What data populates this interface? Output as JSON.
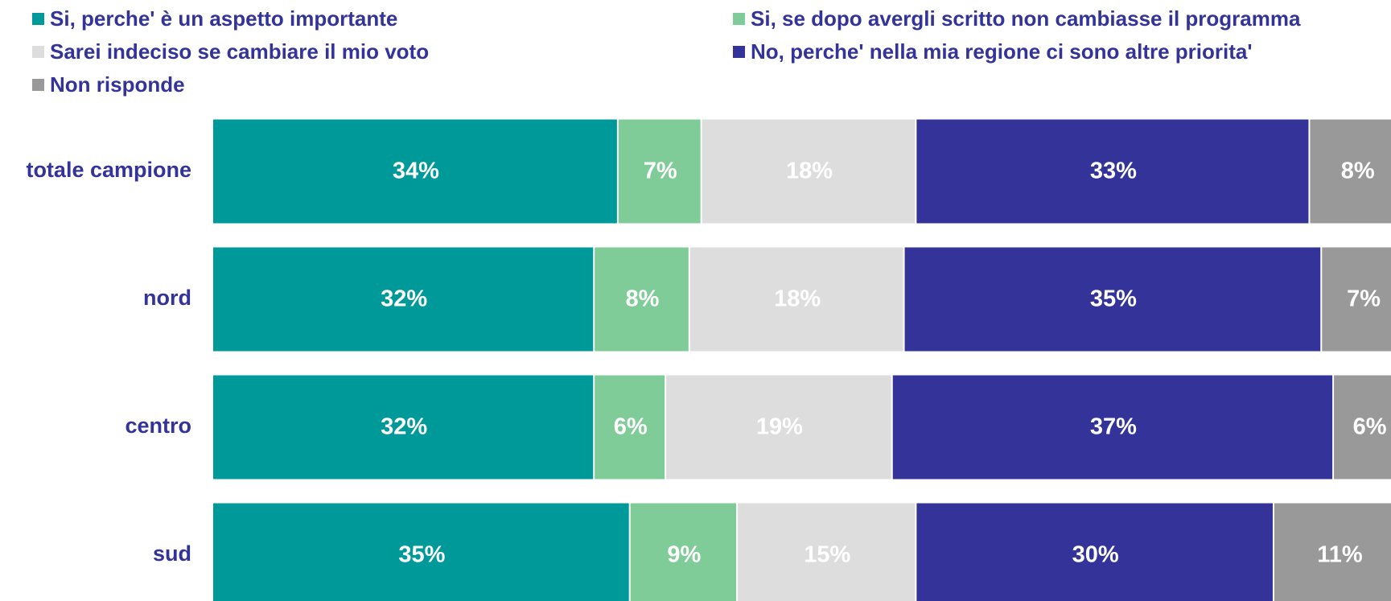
{
  "chart_data": {
    "type": "bar",
    "orientation": "horizontal",
    "stacked": true,
    "categories": [
      "totale campione",
      "nord",
      "centro",
      "sud"
    ],
    "xlim": [
      0,
      100
    ],
    "series": [
      {
        "name": "Si, perche' è un aspetto importante",
        "color": "#009999",
        "values": [
          34,
          32,
          32,
          35
        ],
        "value_labels": [
          "34%",
          "32%",
          "32%",
          "35%"
        ]
      },
      {
        "name": "Si, se dopo avergli scritto non cambiasse il programma",
        "color": "#80cc99",
        "values": [
          7,
          8,
          6,
          9
        ],
        "value_labels": [
          "7%",
          "8%",
          "6%",
          "9%"
        ]
      },
      {
        "name": "Sarei indeciso se cambiare il mio voto",
        "color": "#dddddd",
        "values": [
          18,
          18,
          19,
          15
        ],
        "value_labels": [
          "18%",
          "18%",
          "19%",
          "15%"
        ]
      },
      {
        "name": "No, perche' nella mia regione ci sono altre priorita'",
        "color": "#333399",
        "values": [
          33,
          35,
          37,
          30
        ],
        "value_labels": [
          "33%",
          "35%",
          "37%",
          "30%"
        ]
      },
      {
        "name": "Non risponde",
        "color": "#999999",
        "values": [
          8,
          7,
          6,
          11
        ],
        "value_labels": [
          "8%",
          "7%",
          "6%",
          "11%"
        ]
      }
    ]
  }
}
